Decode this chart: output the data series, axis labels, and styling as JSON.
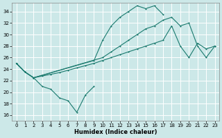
{
  "background_color": "#cce8e8",
  "grid_color": "#ffffff",
  "line_color": "#1a7a6e",
  "xlabel": "Humidex (Indice chaleur)",
  "xlim": [
    -0.5,
    23.5
  ],
  "ylim": [
    15.0,
    35.5
  ],
  "xticks": [
    0,
    1,
    2,
    3,
    4,
    5,
    6,
    7,
    8,
    9,
    10,
    11,
    12,
    13,
    14,
    15,
    16,
    17,
    18,
    19,
    20,
    21,
    22,
    23
  ],
  "yticks": [
    16,
    18,
    20,
    22,
    24,
    26,
    28,
    30,
    32,
    34
  ],
  "line1_x": [
    0,
    1,
    2,
    3,
    4,
    5,
    6,
    7,
    8,
    9
  ],
  "line1_y": [
    25.0,
    23.5,
    22.5,
    21.0,
    20.5,
    19.0,
    18.5,
    16.5,
    19.5,
    21.0
  ],
  "line2_x": [
    0,
    1,
    2,
    9,
    10,
    11,
    12,
    13,
    14,
    15,
    16,
    17
  ],
  "line2_y": [
    25.0,
    23.5,
    22.5,
    25.5,
    29.0,
    31.5,
    33.0,
    34.0,
    35.0,
    34.5,
    35.0,
    33.5
  ],
  "line3_x": [
    0,
    1,
    2,
    10,
    11,
    12,
    13,
    14,
    15,
    16,
    17,
    18,
    19,
    20,
    21,
    22,
    23
  ],
  "line3_y": [
    25.0,
    23.5,
    22.5,
    26.0,
    27.0,
    28.0,
    29.0,
    30.0,
    31.0,
    31.5,
    32.5,
    33.0,
    31.5,
    32.0,
    28.0,
    26.0,
    28.0
  ],
  "line4_x": [
    0,
    1,
    2,
    3,
    4,
    5,
    6,
    7,
    8,
    9,
    10,
    11,
    12,
    13,
    14,
    15,
    16,
    17,
    18,
    19,
    20,
    21,
    22,
    23
  ],
  "line4_y": [
    25.0,
    23.5,
    22.5,
    22.8,
    23.1,
    23.4,
    23.8,
    24.2,
    24.6,
    25.0,
    25.5,
    26.0,
    26.5,
    27.0,
    27.5,
    28.0,
    28.5,
    29.0,
    31.5,
    28.0,
    26.0,
    28.5,
    27.5,
    28.0
  ]
}
